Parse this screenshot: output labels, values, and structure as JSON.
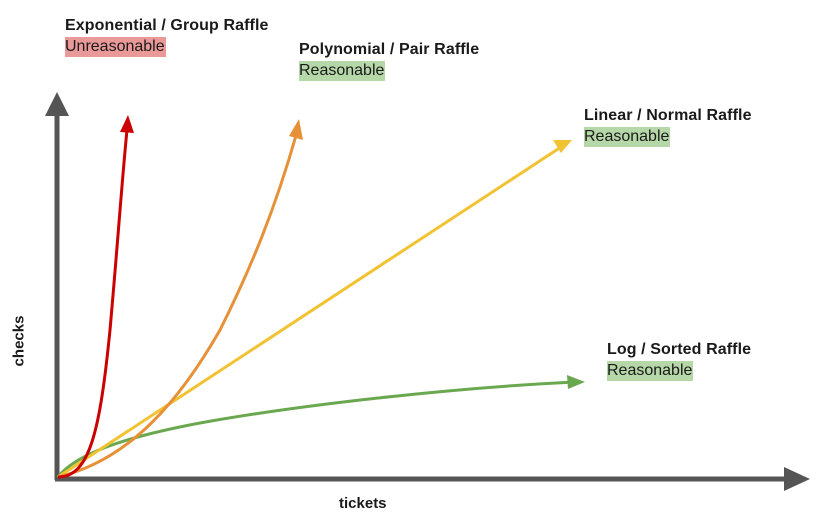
{
  "axes": {
    "x_label": "tickets",
    "y_label": "checks",
    "color": "#555555"
  },
  "curves": [
    {
      "key": "exponential",
      "title": "Exponential / Group Raffle",
      "verdict": "Unreasonable",
      "line_color": "#cc0000",
      "badge_color": "#ea9999"
    },
    {
      "key": "polynomial",
      "title": "Polynomial / Pair Raffle",
      "verdict": "Reasonable",
      "line_color": "#e69138",
      "badge_color": "#b6d7a8"
    },
    {
      "key": "linear",
      "title": "Linear / Normal Raffle",
      "verdict": "Reasonable",
      "line_color": "#f1c232",
      "badge_color": "#b6d7a8"
    },
    {
      "key": "log",
      "title": "Log / Sorted Raffle",
      "verdict": "Reasonable",
      "line_color": "#6aa84f",
      "badge_color": "#b6d7a8"
    }
  ]
}
